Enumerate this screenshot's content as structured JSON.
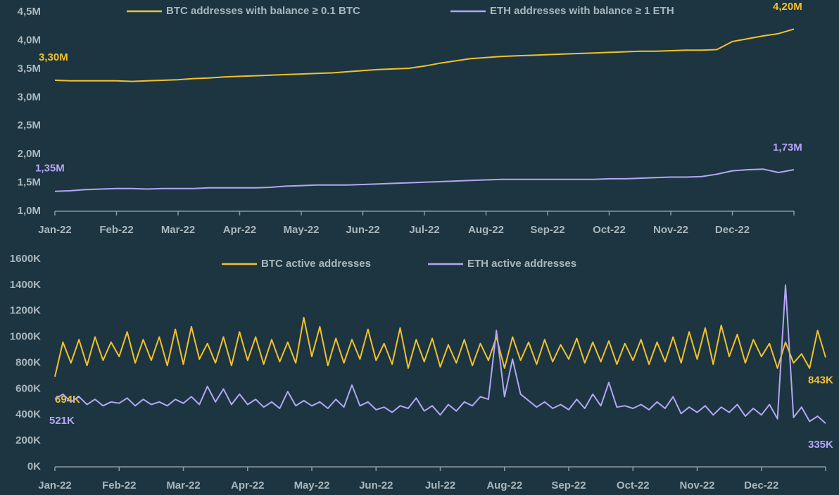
{
  "chart_data": [
    {
      "type": "line",
      "legend": "top",
      "categories": [
        "Jan-22",
        null,
        null,
        null,
        "Feb-22",
        null,
        null,
        null,
        "Mar-22",
        null,
        null,
        null,
        "Apr-22",
        null,
        null,
        null,
        "May-22",
        null,
        null,
        null,
        "Jun-22",
        null,
        null,
        null,
        "Jul-22",
        null,
        null,
        null,
        "Aug-22",
        null,
        null,
        null,
        "Sep-22",
        null,
        null,
        null,
        "Oct-22",
        null,
        null,
        null,
        "Nov-22",
        null,
        null,
        null,
        "Dec-22",
        null,
        null,
        null,
        null
      ],
      "ylim": [
        1.0,
        4.5
      ],
      "yticks": [
        {
          "value": 1.0,
          "label": "1,0M"
        },
        {
          "value": 1.5,
          "label": "1,5M"
        },
        {
          "value": 2.0,
          "label": "2,0M"
        },
        {
          "value": 2.5,
          "label": "2,5M"
        },
        {
          "value": 3.0,
          "label": "3,0M"
        },
        {
          "value": 3.5,
          "label": "3,5M"
        },
        {
          "value": 4.0,
          "label": "4,0M"
        },
        {
          "value": 4.5,
          "label": "4,5M"
        }
      ],
      "series": [
        {
          "name": "BTC addresses with balance ≥ 0.1 BTC",
          "color": "#f2c12e",
          "first_label": "3,30M",
          "last_label": "4,20M",
          "values": [
            3.3,
            3.29,
            3.29,
            3.29,
            3.29,
            3.28,
            3.29,
            3.3,
            3.31,
            3.33,
            3.34,
            3.36,
            3.37,
            3.38,
            3.39,
            3.4,
            3.41,
            3.42,
            3.43,
            3.45,
            3.47,
            3.49,
            3.5,
            3.51,
            3.55,
            3.6,
            3.64,
            3.68,
            3.7,
            3.72,
            3.73,
            3.74,
            3.75,
            3.76,
            3.77,
            3.78,
            3.79,
            3.8,
            3.81,
            3.81,
            3.82,
            3.83,
            3.83,
            3.84,
            3.98,
            4.03,
            4.08,
            4.12,
            4.2
          ]
        },
        {
          "name": "ETH addresses with balance ≥ 1 ETH",
          "color": "#b3a6f5",
          "first_label": "1,35M",
          "last_label": "1,73M",
          "values": [
            1.35,
            1.36,
            1.38,
            1.39,
            1.4,
            1.4,
            1.39,
            1.4,
            1.4,
            1.4,
            1.41,
            1.41,
            1.41,
            1.41,
            1.42,
            1.44,
            1.45,
            1.46,
            1.46,
            1.46,
            1.47,
            1.48,
            1.49,
            1.5,
            1.51,
            1.52,
            1.53,
            1.54,
            1.55,
            1.56,
            1.56,
            1.56,
            1.56,
            1.56,
            1.56,
            1.56,
            1.57,
            1.57,
            1.58,
            1.59,
            1.6,
            1.6,
            1.61,
            1.65,
            1.71,
            1.73,
            1.74,
            1.68,
            1.73
          ]
        }
      ]
    },
    {
      "type": "line",
      "legend": "top",
      "categories": [
        "Jan-22",
        null,
        null,
        null,
        null,
        null,
        null,
        null,
        "Feb-22",
        null,
        null,
        null,
        null,
        null,
        null,
        null,
        "Mar-22",
        null,
        null,
        null,
        null,
        null,
        null,
        null,
        "Apr-22",
        null,
        null,
        null,
        null,
        null,
        null,
        null,
        "May-22",
        null,
        null,
        null,
        null,
        null,
        null,
        null,
        "Jun-22",
        null,
        null,
        null,
        null,
        null,
        null,
        null,
        "Jul-22",
        null,
        null,
        null,
        null,
        null,
        null,
        null,
        "Aug-22",
        null,
        null,
        null,
        null,
        null,
        null,
        null,
        "Sep-22",
        null,
        null,
        null,
        null,
        null,
        null,
        null,
        "Oct-22",
        null,
        null,
        null,
        null,
        null,
        null,
        null,
        "Nov-22",
        null,
        null,
        null,
        null,
        null,
        null,
        null,
        "Dec-22",
        null,
        null,
        null,
        null,
        null,
        null,
        null,
        null
      ],
      "ylim": [
        0,
        1600
      ],
      "yticks": [
        {
          "value": 0,
          "label": "0K"
        },
        {
          "value": 200,
          "label": "200K"
        },
        {
          "value": 400,
          "label": "400K"
        },
        {
          "value": 600,
          "label": "600K"
        },
        {
          "value": 800,
          "label": "800K"
        },
        {
          "value": 1000,
          "label": "1000K"
        },
        {
          "value": 1200,
          "label": "1200K"
        },
        {
          "value": 1400,
          "label": "1400K"
        },
        {
          "value": 1600,
          "label": "1600K"
        }
      ],
      "series": [
        {
          "name": "BTC active addresses",
          "color": "#f2c12e",
          "first_label": "694K",
          "last_label": "843K",
          "values": [
            694,
            960,
            800,
            980,
            780,
            1000,
            820,
            960,
            850,
            1040,
            800,
            980,
            820,
            1000,
            780,
            1060,
            790,
            1080,
            830,
            950,
            800,
            1000,
            780,
            1040,
            820,
            1000,
            790,
            980,
            810,
            960,
            800,
            1150,
            850,
            1080,
            780,
            990,
            800,
            980,
            830,
            1060,
            820,
            950,
            790,
            1070,
            760,
            980,
            810,
            990,
            770,
            940,
            800,
            980,
            780,
            950,
            820,
            1000,
            760,
            1000,
            820,
            960,
            790,
            980,
            810,
            940,
            830,
            990,
            800,
            960,
            810,
            970,
            790,
            950,
            820,
            980,
            790,
            960,
            810,
            1000,
            800,
            1040,
            830,
            1070,
            790,
            1090,
            850,
            1020,
            800,
            980,
            850,
            950,
            760,
            960,
            800,
            870,
            760,
            1050,
            843
          ]
        },
        {
          "name": "ETH active addresses",
          "color": "#b3a6f5",
          "first_label": "521K",
          "last_label": "335K",
          "values": [
            521,
            560,
            500,
            540,
            480,
            520,
            470,
            500,
            490,
            530,
            470,
            520,
            480,
            500,
            470,
            520,
            490,
            540,
            480,
            620,
            500,
            600,
            480,
            560,
            480,
            520,
            460,
            500,
            450,
            580,
            470,
            510,
            470,
            500,
            450,
            520,
            460,
            630,
            470,
            500,
            440,
            460,
            420,
            470,
            450,
            530,
            430,
            470,
            400,
            480,
            430,
            500,
            470,
            540,
            520,
            1050,
            540,
            830,
            560,
            510,
            460,
            500,
            450,
            480,
            440,
            520,
            450,
            560,
            470,
            650,
            460,
            470,
            450,
            480,
            440,
            500,
            450,
            540,
            410,
            460,
            420,
            470,
            400,
            460,
            420,
            480,
            390,
            450,
            400,
            480,
            370,
            1400,
            380,
            460,
            350,
            390,
            335
          ]
        }
      ]
    }
  ]
}
